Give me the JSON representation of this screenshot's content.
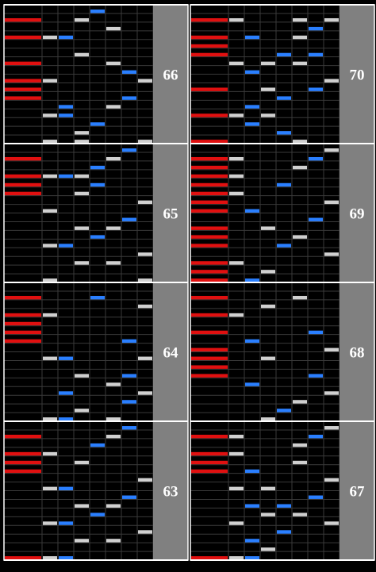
{
  "chart_data": {
    "type": "rhythm-game-note-chart",
    "columns_per_measure": 8,
    "rows_per_measure": 16,
    "lane_kinds": [
      "scratch",
      "white",
      "blue",
      "white",
      "blue",
      "white",
      "blue",
      "white"
    ],
    "colors": {
      "background": "#000000",
      "grid": "#3a3a3a",
      "measure_line": "#ffffff",
      "scratch_note": "#e01010",
      "white_note": "#d0d0d0",
      "blue_note": "#2a7fff",
      "label_panel": "#808080",
      "label_text": "#ffffff"
    },
    "stacks": [
      {
        "name": "left",
        "measures": [
          {
            "label": "66",
            "notes": [
              {
                "row": 0,
                "lane": 4
              },
              {
                "row": 1,
                "lane": 0
              },
              {
                "row": 1,
                "lane": 3
              },
              {
                "row": 2,
                "lane": 5
              },
              {
                "row": 3,
                "lane": 0
              },
              {
                "row": 3,
                "lane": 1
              },
              {
                "row": 3,
                "lane": 2
              },
              {
                "row": 5,
                "lane": 3
              },
              {
                "row": 6,
                "lane": 0
              },
              {
                "row": 6,
                "lane": 5
              },
              {
                "row": 7,
                "lane": 6
              },
              {
                "row": 8,
                "lane": 0
              },
              {
                "row": 8,
                "lane": 1
              },
              {
                "row": 8,
                "lane": 7
              },
              {
                "row": 9,
                "lane": 0
              },
              {
                "row": 10,
                "lane": 0
              },
              {
                "row": 10,
                "lane": 6
              },
              {
                "row": 11,
                "lane": 2
              },
              {
                "row": 11,
                "lane": 5
              },
              {
                "row": 12,
                "lane": 1
              },
              {
                "row": 12,
                "lane": 2
              },
              {
                "row": 13,
                "lane": 4
              },
              {
                "row": 14,
                "lane": 3
              },
              {
                "row": 15,
                "lane": 1
              },
              {
                "row": 15,
                "lane": 3
              },
              {
                "row": 15,
                "lane": 7
              }
            ]
          },
          {
            "label": "65",
            "notes": [
              {
                "row": 0,
                "lane": 6
              },
              {
                "row": 1,
                "lane": 0
              },
              {
                "row": 1,
                "lane": 5
              },
              {
                "row": 2,
                "lane": 4
              },
              {
                "row": 3,
                "lane": 0
              },
              {
                "row": 3,
                "lane": 1
              },
              {
                "row": 3,
                "lane": 2
              },
              {
                "row": 3,
                "lane": 3
              },
              {
                "row": 4,
                "lane": 0
              },
              {
                "row": 4,
                "lane": 4
              },
              {
                "row": 5,
                "lane": 0
              },
              {
                "row": 5,
                "lane": 3
              },
              {
                "row": 6,
                "lane": 7
              },
              {
                "row": 7,
                "lane": 1
              },
              {
                "row": 8,
                "lane": 6
              },
              {
                "row": 9,
                "lane": 3
              },
              {
                "row": 9,
                "lane": 5
              },
              {
                "row": 10,
                "lane": 4
              },
              {
                "row": 11,
                "lane": 1
              },
              {
                "row": 11,
                "lane": 2
              },
              {
                "row": 12,
                "lane": 7
              },
              {
                "row": 13,
                "lane": 3
              },
              {
                "row": 13,
                "lane": 5
              },
              {
                "row": 15,
                "lane": 1
              },
              {
                "row": 15,
                "lane": 7
              }
            ]
          },
          {
            "label": "64",
            "notes": [
              {
                "row": 1,
                "lane": 0
              },
              {
                "row": 1,
                "lane": 4
              },
              {
                "row": 2,
                "lane": 7
              },
              {
                "row": 3,
                "lane": 0
              },
              {
                "row": 3,
                "lane": 1
              },
              {
                "row": 4,
                "lane": 0
              },
              {
                "row": 5,
                "lane": 0
              },
              {
                "row": 6,
                "lane": 0
              },
              {
                "row": 6,
                "lane": 6
              },
              {
                "row": 8,
                "lane": 1
              },
              {
                "row": 8,
                "lane": 2
              },
              {
                "row": 8,
                "lane": 7
              },
              {
                "row": 10,
                "lane": 3
              },
              {
                "row": 10,
                "lane": 6
              },
              {
                "row": 11,
                "lane": 5
              },
              {
                "row": 12,
                "lane": 2
              },
              {
                "row": 12,
                "lane": 7
              },
              {
                "row": 13,
                "lane": 6
              },
              {
                "row": 14,
                "lane": 3
              },
              {
                "row": 15,
                "lane": 1
              },
              {
                "row": 15,
                "lane": 2
              },
              {
                "row": 15,
                "lane": 5
              }
            ]
          },
          {
            "label": "63",
            "notes": [
              {
                "row": 0,
                "lane": 6
              },
              {
                "row": 1,
                "lane": 0
              },
              {
                "row": 1,
                "lane": 5
              },
              {
                "row": 2,
                "lane": 4
              },
              {
                "row": 3,
                "lane": 0
              },
              {
                "row": 3,
                "lane": 1
              },
              {
                "row": 4,
                "lane": 0
              },
              {
                "row": 4,
                "lane": 3
              },
              {
                "row": 5,
                "lane": 0
              },
              {
                "row": 6,
                "lane": 7
              },
              {
                "row": 7,
                "lane": 1
              },
              {
                "row": 7,
                "lane": 2
              },
              {
                "row": 8,
                "lane": 6
              },
              {
                "row": 9,
                "lane": 3
              },
              {
                "row": 9,
                "lane": 5
              },
              {
                "row": 10,
                "lane": 4
              },
              {
                "row": 11,
                "lane": 1
              },
              {
                "row": 11,
                "lane": 2
              },
              {
                "row": 12,
                "lane": 7
              },
              {
                "row": 13,
                "lane": 3
              },
              {
                "row": 13,
                "lane": 5
              },
              {
                "row": 15,
                "lane": 0
              },
              {
                "row": 15,
                "lane": 1
              },
              {
                "row": 15,
                "lane": 2
              }
            ]
          }
        ]
      },
      {
        "name": "right",
        "measures": [
          {
            "label": "70",
            "notes": [
              {
                "row": 1,
                "lane": 0
              },
              {
                "row": 1,
                "lane": 1
              },
              {
                "row": 1,
                "lane": 5
              },
              {
                "row": 1,
                "lane": 7
              },
              {
                "row": 2,
                "lane": 6
              },
              {
                "row": 3,
                "lane": 0
              },
              {
                "row": 3,
                "lane": 2
              },
              {
                "row": 3,
                "lane": 5
              },
              {
                "row": 4,
                "lane": 0
              },
              {
                "row": 5,
                "lane": 0
              },
              {
                "row": 5,
                "lane": 4
              },
              {
                "row": 5,
                "lane": 6
              },
              {
                "row": 6,
                "lane": 1
              },
              {
                "row": 6,
                "lane": 3
              },
              {
                "row": 6,
                "lane": 5
              },
              {
                "row": 7,
                "lane": 2
              },
              {
                "row": 8,
                "lane": 7
              },
              {
                "row": 9,
                "lane": 0
              },
              {
                "row": 9,
                "lane": 3
              },
              {
                "row": 9,
                "lane": 6
              },
              {
                "row": 10,
                "lane": 4
              },
              {
                "row": 11,
                "lane": 2
              },
              {
                "row": 12,
                "lane": 0
              },
              {
                "row": 12,
                "lane": 1
              },
              {
                "row": 12,
                "lane": 3
              },
              {
                "row": 13,
                "lane": 2
              },
              {
                "row": 14,
                "lane": 4
              },
              {
                "row": 15,
                "lane": 0
              },
              {
                "row": 15,
                "lane": 5
              }
            ]
          },
          {
            "label": "69",
            "notes": [
              {
                "row": 0,
                "lane": 7
              },
              {
                "row": 1,
                "lane": 0
              },
              {
                "row": 1,
                "lane": 1
              },
              {
                "row": 1,
                "lane": 6
              },
              {
                "row": 2,
                "lane": 0
              },
              {
                "row": 2,
                "lane": 5
              },
              {
                "row": 3,
                "lane": 0
              },
              {
                "row": 3,
                "lane": 1
              },
              {
                "row": 4,
                "lane": 0
              },
              {
                "row": 4,
                "lane": 4
              },
              {
                "row": 5,
                "lane": 0
              },
              {
                "row": 5,
                "lane": 1
              },
              {
                "row": 6,
                "lane": 0
              },
              {
                "row": 6,
                "lane": 7
              },
              {
                "row": 7,
                "lane": 0
              },
              {
                "row": 7,
                "lane": 2
              },
              {
                "row": 8,
                "lane": 6
              },
              {
                "row": 9,
                "lane": 0
              },
              {
                "row": 9,
                "lane": 3
              },
              {
                "row": 10,
                "lane": 0
              },
              {
                "row": 10,
                "lane": 5
              },
              {
                "row": 11,
                "lane": 0
              },
              {
                "row": 11,
                "lane": 4
              },
              {
                "row": 12,
                "lane": 7
              },
              {
                "row": 13,
                "lane": 0
              },
              {
                "row": 13,
                "lane": 1
              },
              {
                "row": 14,
                "lane": 0
              },
              {
                "row": 14,
                "lane": 3
              },
              {
                "row": 15,
                "lane": 0
              },
              {
                "row": 15,
                "lane": 2
              }
            ]
          },
          {
            "label": "68",
            "notes": [
              {
                "row": 1,
                "lane": 0
              },
              {
                "row": 1,
                "lane": 5
              },
              {
                "row": 2,
                "lane": 3
              },
              {
                "row": 3,
                "lane": 0
              },
              {
                "row": 3,
                "lane": 1
              },
              {
                "row": 5,
                "lane": 0
              },
              {
                "row": 5,
                "lane": 6
              },
              {
                "row": 6,
                "lane": 2
              },
              {
                "row": 7,
                "lane": 0
              },
              {
                "row": 7,
                "lane": 7
              },
              {
                "row": 8,
                "lane": 0
              },
              {
                "row": 8,
                "lane": 3
              },
              {
                "row": 9,
                "lane": 0
              },
              {
                "row": 10,
                "lane": 0
              },
              {
                "row": 10,
                "lane": 6
              },
              {
                "row": 11,
                "lane": 2
              },
              {
                "row": 12,
                "lane": 7
              },
              {
                "row": 13,
                "lane": 5
              },
              {
                "row": 14,
                "lane": 4
              },
              {
                "row": 15,
                "lane": 3
              }
            ]
          },
          {
            "label": "67",
            "notes": [
              {
                "row": 0,
                "lane": 7
              },
              {
                "row": 1,
                "lane": 0
              },
              {
                "row": 1,
                "lane": 1
              },
              {
                "row": 1,
                "lane": 6
              },
              {
                "row": 2,
                "lane": 5
              },
              {
                "row": 3,
                "lane": 0
              },
              {
                "row": 3,
                "lane": 1
              },
              {
                "row": 4,
                "lane": 0
              },
              {
                "row": 4,
                "lane": 5
              },
              {
                "row": 5,
                "lane": 0
              },
              {
                "row": 5,
                "lane": 2
              },
              {
                "row": 6,
                "lane": 7
              },
              {
                "row": 7,
                "lane": 1
              },
              {
                "row": 7,
                "lane": 3
              },
              {
                "row": 8,
                "lane": 6
              },
              {
                "row": 9,
                "lane": 2
              },
              {
                "row": 9,
                "lane": 4
              },
              {
                "row": 10,
                "lane": 3
              },
              {
                "row": 10,
                "lane": 5
              },
              {
                "row": 11,
                "lane": 1
              },
              {
                "row": 11,
                "lane": 7
              },
              {
                "row": 12,
                "lane": 4
              },
              {
                "row": 13,
                "lane": 2
              },
              {
                "row": 14,
                "lane": 3
              },
              {
                "row": 15,
                "lane": 0
              },
              {
                "row": 15,
                "lane": 1
              },
              {
                "row": 15,
                "lane": 2
              }
            ]
          }
        ]
      }
    ]
  }
}
